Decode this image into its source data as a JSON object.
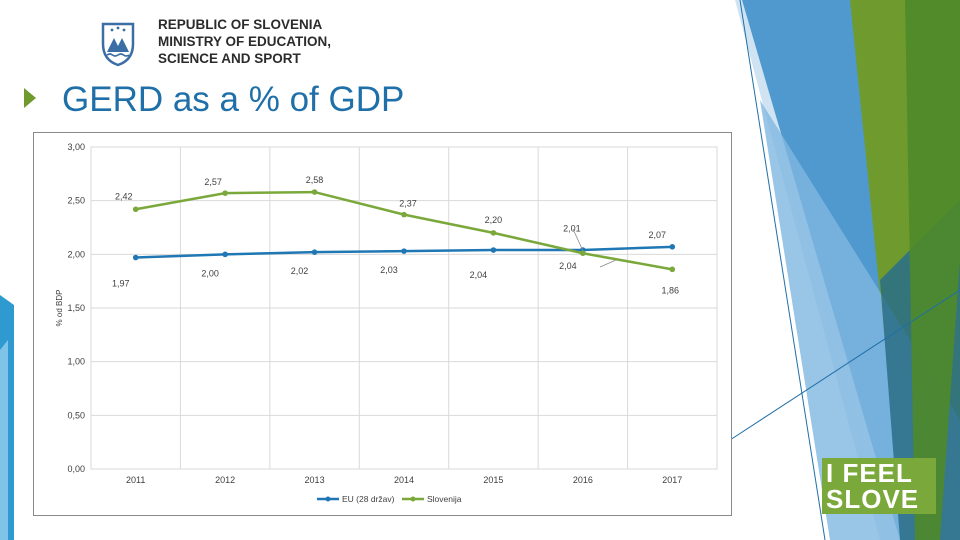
{
  "header": {
    "logo_line1": "REPUBLIC OF SLOVENIA",
    "logo_line2": "MINISTRY OF EDUCATION,",
    "logo_line3": "SCIENCE AND SPORT"
  },
  "slide": {
    "title": "GERD as a % of GDP"
  },
  "badge": {
    "line1": "I FEEL",
    "line2": "SLOVE"
  },
  "colors": {
    "eu": "#1f77b4",
    "slovenia": "#7aa83a",
    "title": "#1f6fa8"
  },
  "chart_data": {
    "type": "line",
    "title": "",
    "xlabel": "",
    "ylabel": "% od BDP",
    "x": [
      "2011",
      "2012",
      "2013",
      "2014",
      "2015",
      "2016",
      "2017"
    ],
    "ylim": [
      0,
      3
    ],
    "yticks": [
      "0,00",
      "0,50",
      "1,00",
      "1,50",
      "2,00",
      "2,50",
      "3,00"
    ],
    "grid": true,
    "legend": "bottom",
    "series": [
      {
        "name": "EU (28 držav)",
        "values": [
          1.97,
          2.0,
          2.02,
          2.03,
          2.04,
          2.04,
          2.07
        ],
        "labels": [
          "1,97",
          "2,00",
          "2,02",
          "2,03",
          "2,04",
          "2,04",
          "2,07"
        ]
      },
      {
        "name": "Slovenija",
        "values": [
          2.42,
          2.57,
          2.58,
          2.37,
          2.2,
          2.01,
          1.86
        ],
        "labels": [
          "2,42",
          "2,57",
          "2,58",
          "2,37",
          "2,20",
          "2,01",
          "1,86"
        ]
      }
    ]
  }
}
